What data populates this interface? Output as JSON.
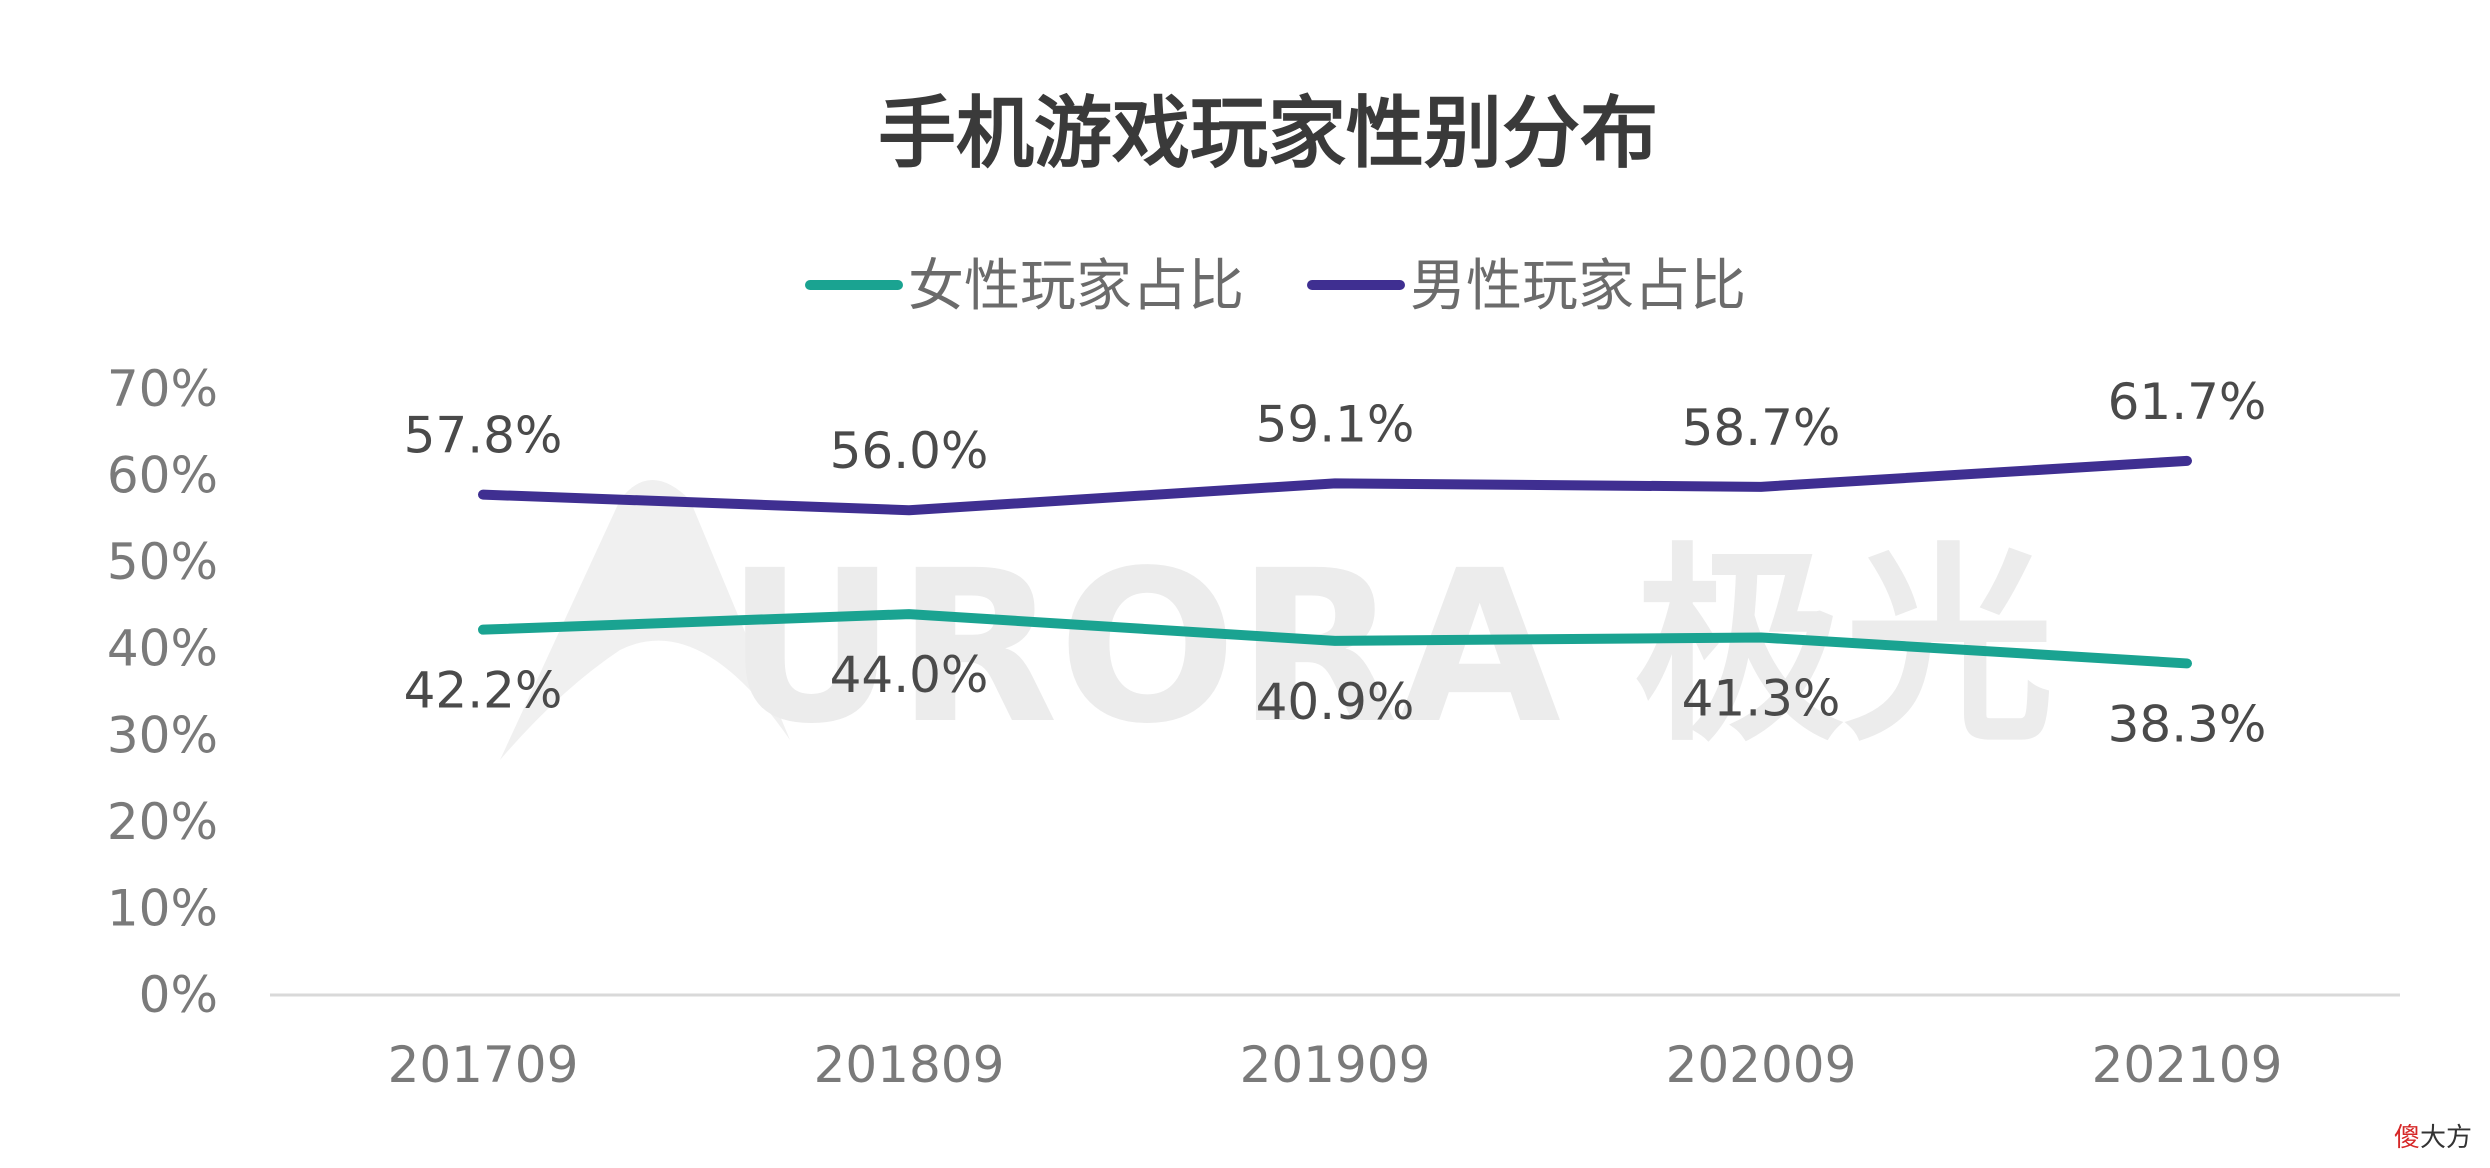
{
  "chart_data": {
    "type": "line",
    "title": "手机游戏玩家性别分布",
    "categories": [
      "201709",
      "201809",
      "201909",
      "202009",
      "202109"
    ],
    "series": [
      {
        "name": "女性玩家占比",
        "color": "#1aa391",
        "values": [
          42.2,
          44.0,
          40.9,
          41.3,
          38.3
        ],
        "labels": [
          "42.2%",
          "44.0%",
          "40.9%",
          "41.3%",
          "38.3%"
        ],
        "label_position": "below"
      },
      {
        "name": "男性玩家占比",
        "color": "#3f2f91",
        "values": [
          57.8,
          56.0,
          59.1,
          58.7,
          61.7
        ],
        "labels": [
          "57.8%",
          "56.0%",
          "59.1%",
          "58.7%",
          "61.7%"
        ],
        "label_position": "above"
      }
    ],
    "ylim": [
      0,
      70
    ],
    "yticks": [
      "0%",
      "10%",
      "20%",
      "30%",
      "40%",
      "50%",
      "60%",
      "70%"
    ],
    "xlabel": "",
    "ylabel": "",
    "grid": false,
    "legend_position": "top-center"
  },
  "watermark": {
    "text": "URORA 极光"
  },
  "corner_mark": {
    "accent": "傻",
    "rest": "大方"
  }
}
